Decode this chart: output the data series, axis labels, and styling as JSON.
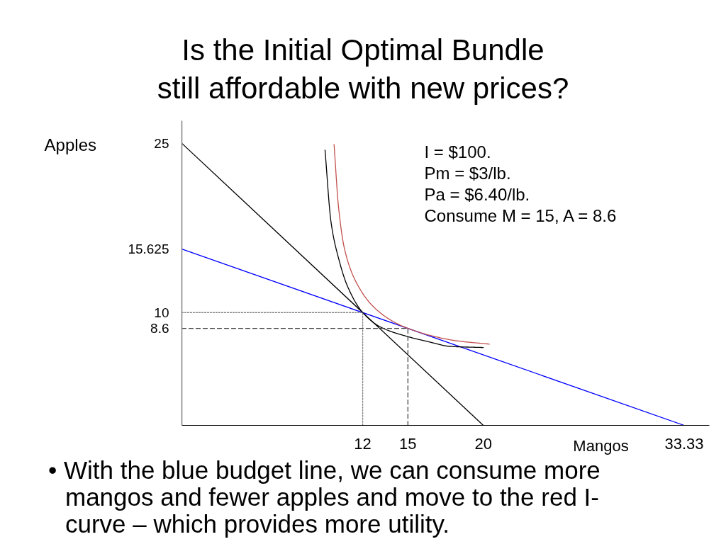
{
  "chart_data": {
    "type": "line",
    "title": "Is the Initial Optimal Bundle\nstill affordable with new prices?",
    "xlabel": "Mangos",
    "ylabel": "Apples",
    "annotations": [
      "I = $100.",
      "Pm = $3/lb.",
      "Pa = $6.40/lb.",
      "Consume M = 15, A = 8.6",
      "• With the blue budget line, we can consume more mangos and fewer apples and move to the red I-curve – which provides more utility."
    ],
    "xlim": [
      0,
      35
    ],
    "xticks": [
      12,
      15,
      20,
      33.33
    ],
    "ylim": [
      0,
      27
    ],
    "yticks": [
      8.6,
      10,
      15.625,
      25
    ],
    "grid": false,
    "series": [
      {
        "color": "#000000",
        "x": [
          0,
          20
        ],
        "values": [
          25,
          0
        ]
      },
      {
        "color": "#0000ff",
        "x": [
          0,
          33.33
        ],
        "values": [
          15.625,
          0
        ]
      },
      {
        "color": "#000000",
        "x": [
          9.5,
          9.9,
          10.4,
          11.0,
          12,
          13.2,
          14.9,
          16.4,
          17.8,
          20
        ],
        "values": [
          24.4,
          18.0,
          14.8,
          12.3,
          10,
          8.7,
          7.9,
          7.4,
          7.0,
          6.9
        ]
      },
      {
        "color": "#c0504d",
        "x": [
          10.1,
          10.4,
          10.8,
          11.6,
          12.8,
          14.3,
          15,
          16.4,
          18.2,
          20.4
        ],
        "values": [
          24.9,
          19.3,
          15.6,
          12.6,
          10.4,
          9.0,
          8.6,
          8.0,
          7.5,
          7.2
        ]
      },
      {
        "color": "#808080",
        "x": [
          0,
          12,
          12
        ],
        "values": [
          10,
          10,
          0
        ],
        "line_style": "dotted"
      },
      {
        "color": "#404040",
        "x": [
          0,
          15,
          15
        ],
        "values": [
          8.6,
          8.6,
          0
        ],
        "line_style": "dashed"
      }
    ]
  }
}
